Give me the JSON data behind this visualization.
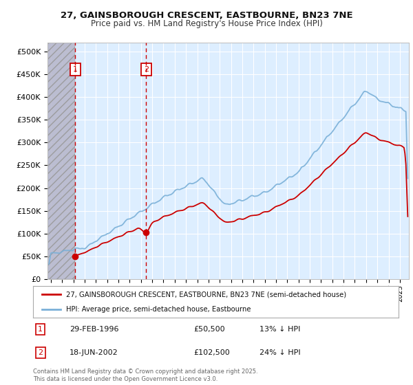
{
  "title_line1": "27, GAINSBOROUGH CRESCENT, EASTBOURNE, BN23 7NE",
  "title_line2": "Price paid vs. HM Land Registry's House Price Index (HPI)",
  "background_color": "#ffffff",
  "plot_bg_color": "#ddeeff",
  "hatch_bg_color": "#c8c8d8",
  "grid_color": "#ffffff",
  "red_line_color": "#cc0000",
  "blue_line_color": "#7ab0d8",
  "marker_color": "#cc0000",
  "vline_color": "#cc0000",
  "ylim": [
    0,
    520000
  ],
  "yticks": [
    0,
    50000,
    100000,
    150000,
    200000,
    250000,
    300000,
    350000,
    400000,
    450000,
    500000
  ],
  "ytick_labels": [
    "£0",
    "£50K",
    "£100K",
    "£150K",
    "£200K",
    "£250K",
    "£300K",
    "£350K",
    "£400K",
    "£450K",
    "£500K"
  ],
  "xlim_start": 1993.7,
  "xlim_end": 2025.8,
  "purchase1_x": 1996.16,
  "purchase1_y": 50500,
  "purchase2_x": 2002.46,
  "purchase2_y": 102500,
  "legend_entry1": "27, GAINSBOROUGH CRESCENT, EASTBOURNE, BN23 7NE (semi-detached house)",
  "legend_entry2": "HPI: Average price, semi-detached house, Eastbourne",
  "annotation1": [
    "1",
    "29-FEB-1996",
    "£50,500",
    "13% ↓ HPI"
  ],
  "annotation2": [
    "2",
    "18-JUN-2002",
    "£102,500",
    "24% ↓ HPI"
  ],
  "footnote": "Contains HM Land Registry data © Crown copyright and database right 2025.\nThis data is licensed under the Open Government Licence v3.0.",
  "hatch_end_x": 1996.16
}
